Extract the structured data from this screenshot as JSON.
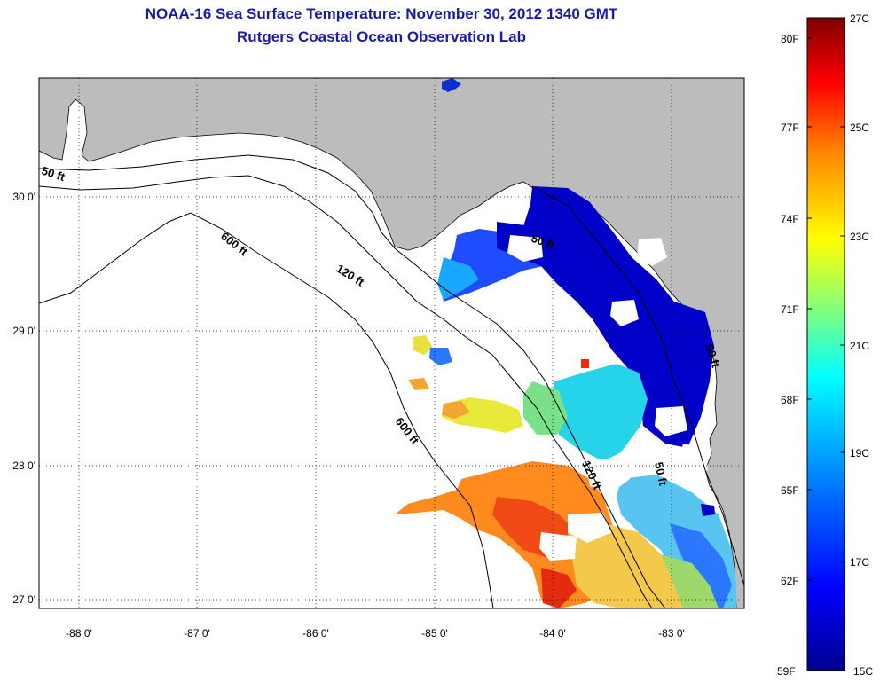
{
  "title_line1": "NOAA-16 Sea Surface Temperature:  November 30, 2012 1340 GMT",
  "title_line2": "Rutgers Coastal Ocean Observation Lab",
  "x_ticks": [
    "-88 0'",
    "-87 0'",
    "-86 0'",
    "-85 0'",
    "-84 0'",
    "-83 0'"
  ],
  "y_ticks": [
    "30 0'",
    "29 0'",
    "28 0'",
    "27 0'"
  ],
  "contour_labels": {
    "c50a": "50 ft",
    "c600a": "600 ft",
    "c120a": "120 ft",
    "c600b": "600 ft",
    "c50b": "50 ft",
    "c120b": "120 ft",
    "c50c": "50 ft",
    "c50d": "50 ft"
  },
  "colorbar": {
    "celsius_labels": [
      "27C",
      "25C",
      "23C",
      "21C",
      "19C",
      "17C",
      "15C"
    ],
    "fahrenheit_labels": [
      "80F",
      "77F",
      "74F",
      "71F",
      "68F",
      "65F",
      "62F",
      "59F"
    ],
    "colors": [
      "#00008f",
      "#0000ff",
      "#007fff",
      "#00ffff",
      "#7fff7f",
      "#ffff00",
      "#ff7f00",
      "#ff0000",
      "#7f0000"
    ]
  },
  "colors": {
    "land": "#bcbcbc",
    "title": "#1a1aa8"
  }
}
